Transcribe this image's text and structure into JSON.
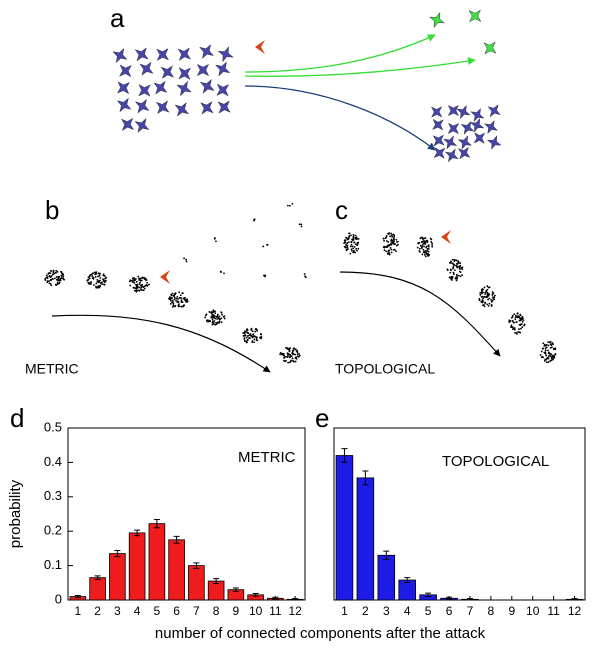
{
  "panels": {
    "a": "a",
    "b": "b",
    "c": "c",
    "d": "d",
    "e": "e",
    "b_caption": "METRIC",
    "c_caption": "TOPOLOGICAL"
  },
  "xlabel": "number of connected components after the attack",
  "chart_data": [
    {
      "type": "bar",
      "label": "METRIC",
      "ylabel": "probability",
      "categories": [
        "1",
        "2",
        "3",
        "4",
        "5",
        "6",
        "7",
        "8",
        "9",
        "10",
        "11",
        "12"
      ],
      "series": [
        {
          "color": "#ee1c1c",
          "values": [
            0.01,
            0.065,
            0.135,
            0.195,
            0.222,
            0.175,
            0.1,
            0.055,
            0.03,
            0.015,
            0.005,
            0.002
          ],
          "errors": [
            0.003,
            0.005,
            0.009,
            0.008,
            0.012,
            0.01,
            0.008,
            0.007,
            0.005,
            0.004,
            0.003,
            0.002
          ]
        }
      ],
      "ylim": [
        0,
        0.5
      ],
      "yticks": [
        0,
        0.1,
        0.2,
        0.3,
        0.4,
        0.5
      ]
    },
    {
      "type": "bar",
      "label": "TOPOLOGICAL",
      "categories": [
        "1",
        "2",
        "3",
        "4",
        "5",
        "6",
        "7",
        "8",
        "9",
        "10",
        "11",
        "12"
      ],
      "series": [
        {
          "color": "#1c1ce6",
          "values": [
            0.42,
            0.355,
            0.13,
            0.058,
            0.015,
            0.005,
            0.002,
            0,
            0,
            0,
            0,
            0.002
          ],
          "errors": [
            0.02,
            0.02,
            0.012,
            0.007,
            0.005,
            0.003,
            0.002,
            0,
            0,
            0,
            0,
            0.002
          ]
        }
      ],
      "ylim": [
        0,
        0.5
      ]
    }
  ]
}
